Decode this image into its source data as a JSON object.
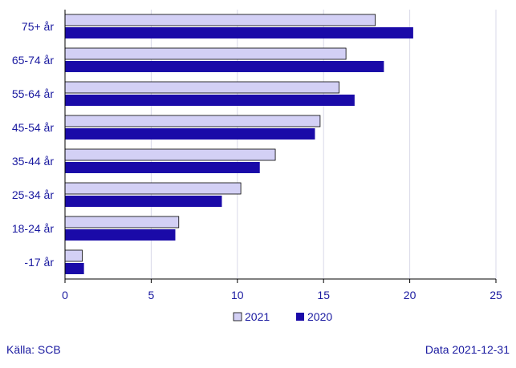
{
  "chart_data": {
    "type": "bar",
    "orientation": "horizontal",
    "categories": [
      "75+ år",
      "65-74 år",
      "55-64 år",
      "45-54 år",
      "35-44 år",
      "25-34 år",
      "18-24 år",
      "-17 år"
    ],
    "series": [
      {
        "name": "2021",
        "values": [
          18.0,
          16.3,
          15.9,
          14.8,
          12.2,
          10.2,
          6.6,
          1.0
        ]
      },
      {
        "name": "2020",
        "values": [
          20.2,
          18.5,
          16.8,
          14.5,
          11.3,
          9.1,
          6.4,
          1.1
        ]
      }
    ],
    "xlim": [
      0,
      25
    ],
    "xticks": [
      0,
      5,
      10,
      15,
      20,
      25
    ],
    "grid": "vertical",
    "legend_position": "bottom-center"
  },
  "colors": {
    "series_2021": "#d3d0f5",
    "series_2020": "#1a0aa8",
    "text": "#1a1aa0",
    "grid": "#d8d8e8"
  },
  "footer": {
    "source": "Källa: SCB",
    "date": "Data 2021-12-31"
  }
}
